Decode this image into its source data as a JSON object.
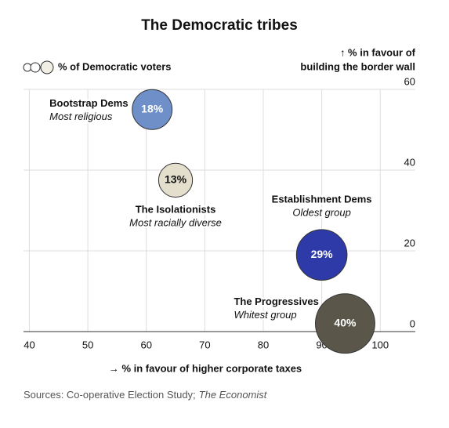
{
  "chart_data": {
    "type": "bubble",
    "title": "The Democratic tribes",
    "size_legend": "% of Democratic voters",
    "y_label": [
      "↑ % in favour of",
      "building the border wall"
    ],
    "x_label": "→ % in favour of higher corporate taxes",
    "source": {
      "text": "Sources: Co-operative Election Study;",
      "publication": "The Economist"
    },
    "xlim": [
      39,
      106
    ],
    "ylim": [
      0,
      60
    ],
    "xticks": [
      40,
      50,
      60,
      70,
      80,
      90,
      100
    ],
    "yticks": [
      0,
      20,
      40,
      60
    ],
    "grid": true,
    "points": [
      {
        "name": "Bootstrap Dems",
        "note": "Most religious",
        "color": "#6f8fc9",
        "x": 61,
        "y": 55,
        "size": 18,
        "size_label": "18%"
      },
      {
        "name": "The Isolationists",
        "note": "Most racially diverse",
        "color": "#e4dfcd",
        "x": 65,
        "y": 37.5,
        "size": 13,
        "size_label": "13%"
      },
      {
        "name": "Establishment Dems",
        "note": "Oldest group",
        "color": "#2e3aa8",
        "x": 90,
        "y": 19,
        "size": 29,
        "size_label": "29%"
      },
      {
        "name": "The Progressives",
        "note": "Whitest group",
        "color": "#5a574a",
        "x": 94,
        "y": 2,
        "size": 40,
        "size_label": "40%"
      }
    ]
  }
}
